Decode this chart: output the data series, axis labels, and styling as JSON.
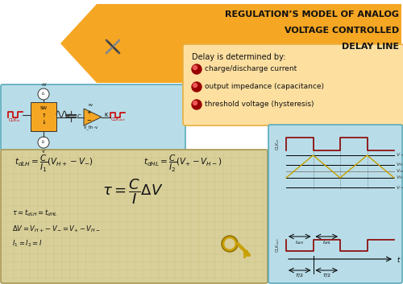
{
  "title_lines": [
    "REGULATION’S MODEL OF ANALOG",
    "VOLTAGE CONTROLLED",
    "DELAY LINE"
  ],
  "title_bg_color": "#F5A623",
  "title_text_color": "#111111",
  "slide_bg_color": "#FFFFFF",
  "circuit_bg_color": "#B8DDE8",
  "formula_bg_color": "#D8CF9A",
  "graph_bg_color": "#B8DDE8",
  "delay_box_color": "#FDDFA0",
  "bullet_color": "#CC1100",
  "bullet_items": [
    "charge/discharge current",
    "output impedance (capacitance)",
    "threshold voltage (hysteresis)"
  ],
  "formula1": "$t_{dLH} = \\dfrac{C}{I_1}(V_{H+} - V_{-})$",
  "formula2": "$t_{dHL} = \\dfrac{C}{I_2}(V_{+} - V_{H-})$",
  "formula3": "$\\tau = \\dfrac{C}{I}\\Delta V$",
  "sub_text1": "$\\tau = t_{dLH} = t_{dHL}$",
  "sub_text2": "$\\Delta V = V_{H+} - V_{-} = V_{+} - V_{H-}$",
  "sub_text3": "$I_1 = I_2 = I$"
}
